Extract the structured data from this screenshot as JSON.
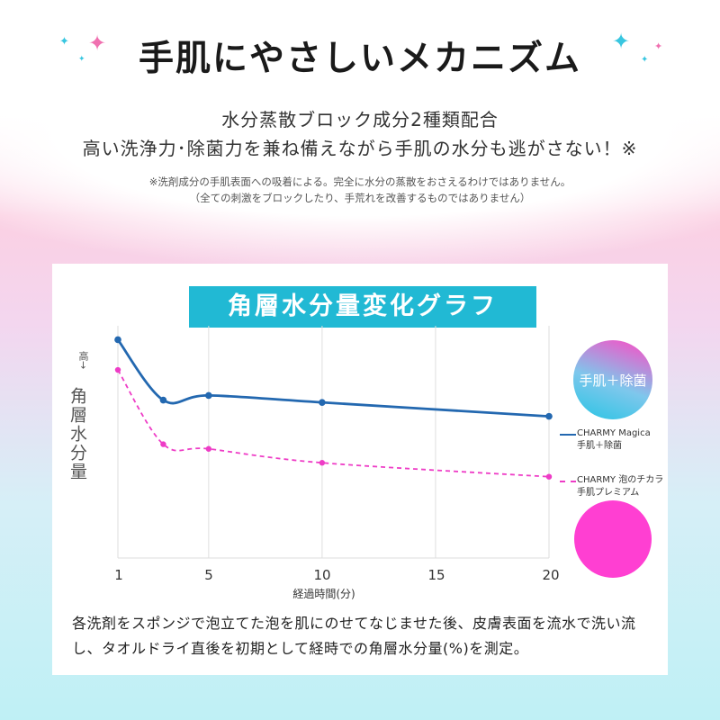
{
  "header": {
    "headline": "手肌にやさしいメカニズム",
    "subtitle_1": "水分蒸散ブロック成分2種類配合",
    "subtitle_2": "高い洗浄力･除菌力を兼ね備えながら手肌の水分も逃がさない！※",
    "note_1": "※洗剤成分の手肌表面への吸着による。完全に水分の蒸散をおさえるわけではありません。",
    "note_2": "（全ての刺激をブロックしたり、手荒れを改善するものではありません）"
  },
  "colors": {
    "accent": "#21b9d4",
    "series_1": "#2368b0",
    "series_2": "#ee3cc6",
    "sparkle_pink": "#f070b0",
    "sparkle_blue": "#38c6e0"
  },
  "chart_data": {
    "type": "line",
    "title": "角層水分量変化グラフ",
    "xlabel": "経過時間(分)",
    "ylabel": "角層水分量",
    "ylabel_high": "高→",
    "x_ticks": [
      1,
      5,
      10,
      15,
      20
    ],
    "xlim": [
      1,
      20
    ],
    "grid": "vertical",
    "y_units": "relative (no numeric scale shown)",
    "ylim": [
      0,
      100
    ],
    "series": [
      {
        "name_line_1": "CHARMY Magica",
        "name_line_2": "手肌＋除菌",
        "style": "solid",
        "color": "#2368b0",
        "x": [
          1,
          3,
          5,
          10,
          20
        ],
        "y": [
          94,
          68,
          70,
          67,
          61
        ]
      },
      {
        "name_line_1": "CHARMY 泡のチカラ",
        "name_line_2": "手肌プレミアム",
        "style": "dashed",
        "color": "#ee3cc6",
        "x": [
          1,
          3,
          5,
          10,
          20
        ],
        "y": [
          81,
          49,
          47,
          41,
          35
        ]
      }
    ]
  },
  "badge": {
    "label": "手肌＋除菌"
  },
  "description": "各洗剤をスポンジで泡立てた泡を肌にのせてなじませた後、皮膚表面を流水で洗い流し、タオルドライ直後を初期として経時での角層水分量(%)を測定。"
}
